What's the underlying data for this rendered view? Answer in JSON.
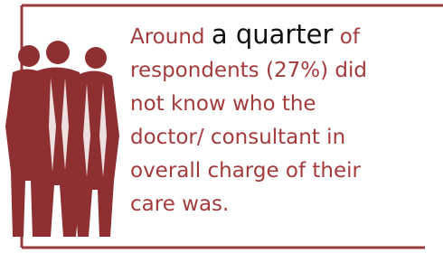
{
  "callout": {
    "lead": {
      "before": "Around",
      "emphasis": "a quarter",
      "after": "of"
    },
    "lines": [
      "respondents (27%) did",
      "not know who the",
      "doctor/ consultant in",
      "overall charge of their",
      "care was."
    ]
  }
}
